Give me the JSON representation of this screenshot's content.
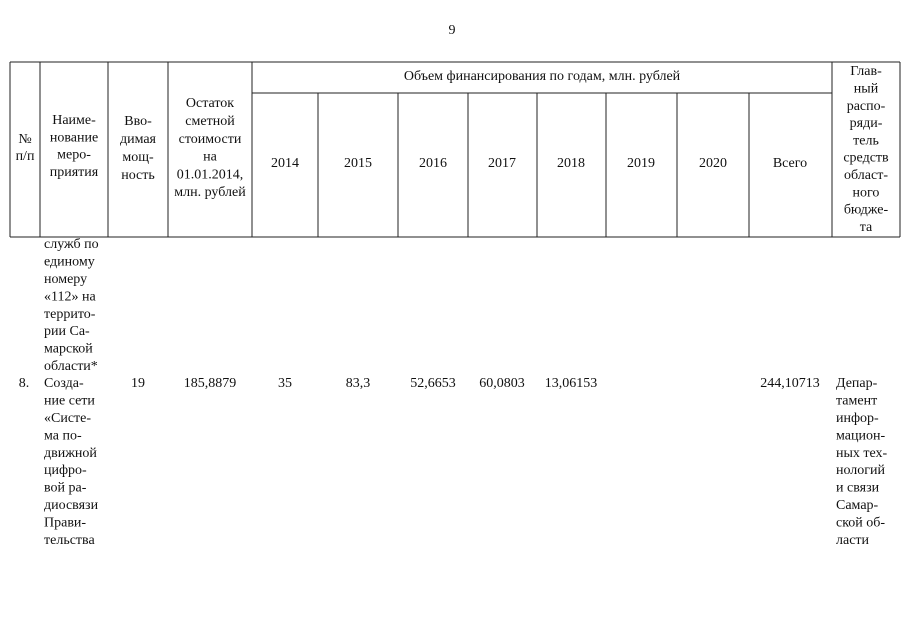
{
  "page_number": "9",
  "table": {
    "header": {
      "number": [
        "№",
        "п/п"
      ],
      "name": [
        "Наиме-",
        "нование",
        "меро-",
        "приятия"
      ],
      "capacity": [
        "Вво-",
        "димая",
        "мощ-",
        "ность"
      ],
      "remaining": [
        "Остаток",
        "сметной",
        "стоимости",
        "на",
        "01.01.2014,",
        "млн. рублей"
      ],
      "funding_title": "Объем финансирования по годам, млн. рублей",
      "years": [
        "2014",
        "2015",
        "2016",
        "2017",
        "2018",
        "2019",
        "2020",
        "Всего"
      ],
      "manager": [
        "Глав-",
        "ный",
        "распо-",
        "ряди-",
        "тель",
        "средств",
        "област-",
        "ного",
        "бюдже-",
        "та"
      ]
    },
    "rows": [
      {
        "name": [
          "служб по",
          "единому",
          "номеру",
          "«112» на",
          "террито-",
          "рии Са-",
          "марской",
          "области*"
        ]
      },
      {
        "number": "8.",
        "name": [
          "Созда-",
          "ние сети",
          "«Систе-",
          "ма  по-",
          "движной",
          "цифро-",
          "вой  ра-",
          "диосвязи",
          "Прави-",
          "тельства"
        ],
        "capacity": "19",
        "remaining": "185,8879",
        "funding": [
          "35",
          "83,3",
          "52,6653",
          "60,0803",
          "13,06153"
        ],
        "total": "244,10713",
        "manager": [
          "Депар-",
          "тамент",
          "инфор-",
          "мацион-",
          "ных  тех-",
          "нологий",
          "и  связи",
          "Самар-",
          "ской  об-",
          "ласти"
        ]
      }
    ]
  }
}
